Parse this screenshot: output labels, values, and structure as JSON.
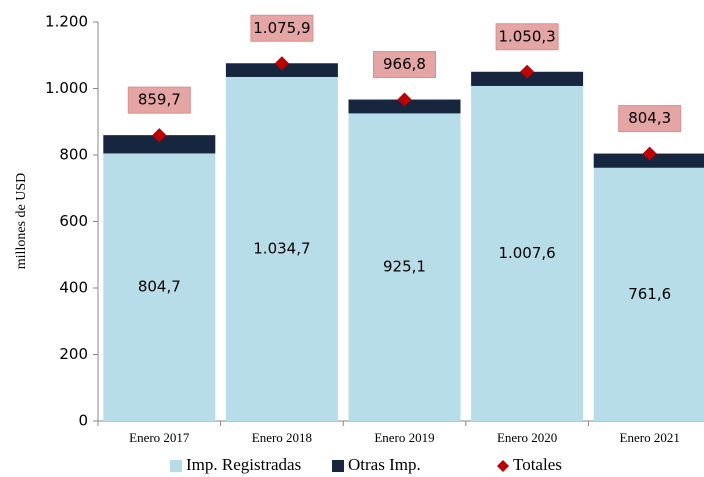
{
  "chart_data": {
    "type": "bar",
    "stacked": true,
    "y_axis_label": "millones de  USD",
    "categories": [
      "Enero 2017",
      "Enero 2018",
      "Enero 2019",
      "Enero 2020",
      "Enero 2021"
    ],
    "series": [
      {
        "name": "Imp. Registradas",
        "type": "bar",
        "color": "#b7dde8",
        "values": [
          804.7,
          1034.7,
          925.1,
          1007.6,
          761.6
        ],
        "value_labels": [
          "804,7",
          "1.034,7",
          "925,1",
          "1.007,6",
          "761,6"
        ]
      },
      {
        "name": "Otras Imp.",
        "type": "bar",
        "color": "#17263f",
        "values": [
          55.0,
          41.2,
          41.7,
          42.7,
          42.7
        ]
      },
      {
        "name": "Totales",
        "type": "scatter",
        "color": "#c00000",
        "values": [
          859.7,
          1075.9,
          966.8,
          1050.3,
          804.3
        ],
        "value_labels": [
          "859,7",
          "1.075,9",
          "966,8",
          "1.050,3",
          "804,3"
        ]
      }
    ],
    "ylim": [
      0,
      1200
    ],
    "yticks": [
      0,
      200,
      400,
      600,
      800,
      {
        "value": 1000,
        "label": "1.000"
      },
      {
        "value": 1200,
        "label": "1.200"
      }
    ]
  }
}
